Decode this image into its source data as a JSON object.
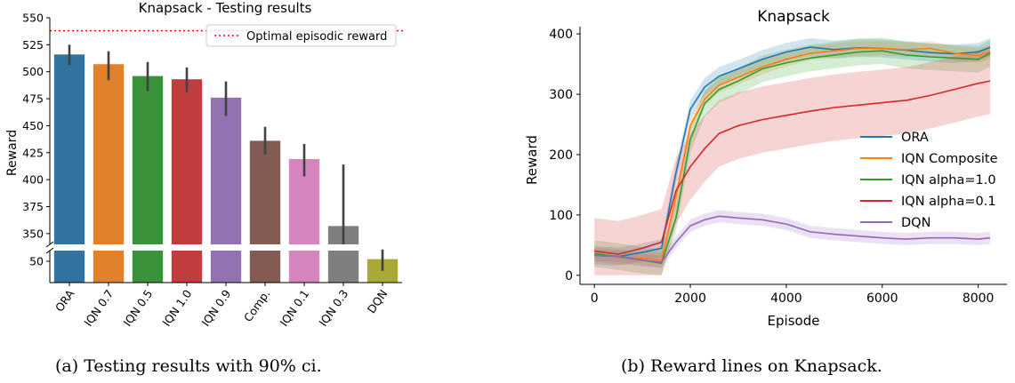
{
  "captions": {
    "a": "(a) Testing results with 90% ci.",
    "b": "(b) Reward lines on Knapsack."
  },
  "chart_data": [
    {
      "type": "bar",
      "title": "Knapsack - Testing results",
      "xlabel": "",
      "ylabel": "Reward",
      "categories": [
        "ORA",
        "IQN 0.7",
        "IQN 0.5",
        "IQN 1.0",
        "IQN 0.9",
        "Comp.",
        "IQN 0.1",
        "IQN 0.3",
        "DQN"
      ],
      "values": [
        516,
        507,
        496,
        493,
        476,
        436,
        419,
        357,
        52
      ],
      "ci": [
        [
          506,
          525
        ],
        [
          492,
          519
        ],
        [
          482,
          509
        ],
        [
          481,
          504
        ],
        [
          459,
          491
        ],
        [
          423,
          449
        ],
        [
          403,
          433
        ],
        [
          340,
          414
        ],
        [
          41,
          61
        ]
      ],
      "colors": [
        "#3274a1",
        "#e1812c",
        "#3a923a",
        "#c03d3e",
        "#9372b2",
        "#845b53",
        "#d684bd",
        "#7f7f7f",
        "#a9aa35"
      ],
      "broken_y_axis": true,
      "ylim_upper": [
        340,
        550
      ],
      "ylim_lower": [
        30,
        60
      ],
      "yticks_upper": [
        350,
        375,
        400,
        425,
        450,
        475,
        500,
        525,
        550
      ],
      "yticks_lower": [
        50
      ],
      "reference_line": {
        "label": "Optimal episodic reward",
        "value": 538,
        "color": "#ff0000",
        "style": "dotted"
      },
      "legend": "top-right",
      "grid": false
    },
    {
      "type": "line",
      "title": "Knapsack",
      "xlabel": "Episode",
      "ylabel": "Reward",
      "xlim": [
        -300,
        8600
      ],
      "ylim": [
        -15,
        412
      ],
      "xticks": [
        0,
        2000,
        4000,
        6000,
        8000
      ],
      "yticks": [
        0,
        100,
        200,
        300,
        400
      ],
      "legend": "right",
      "grid": false,
      "x": [
        0,
        500,
        1000,
        1400,
        1700,
        2000,
        2300,
        2600,
        3000,
        3500,
        4000,
        4500,
        5000,
        5500,
        6000,
        6500,
        7000,
        7500,
        8000,
        8250
      ],
      "series": [
        {
          "name": "ORA",
          "color": "#1f77b4",
          "values": [
            33,
            31,
            38,
            45,
            170,
            275,
            312,
            330,
            342,
            358,
            370,
            378,
            374,
            377,
            376,
            373,
            369,
            367,
            370,
            378
          ],
          "band": 15
        },
        {
          "name": "IQN Composite",
          "color": "#ff7f0e",
          "values": [
            35,
            30,
            28,
            25,
            130,
            248,
            292,
            315,
            328,
            345,
            358,
            368,
            372,
            376,
            376,
            374,
            376,
            368,
            364,
            370
          ],
          "band": 12
        },
        {
          "name": "IQN alpha=1.0",
          "color": "#2ca02c",
          "values": [
            36,
            31,
            25,
            20,
            95,
            225,
            285,
            308,
            322,
            342,
            352,
            360,
            365,
            370,
            372,
            365,
            362,
            360,
            358,
            368
          ],
          "band": 22
        },
        {
          "name": "IQN alpha=0.1",
          "color": "#d62728",
          "values": [
            40,
            35,
            45,
            55,
            140,
            180,
            210,
            235,
            248,
            258,
            265,
            272,
            278,
            282,
            286,
            290,
            298,
            308,
            318,
            322
          ],
          "band": 55
        },
        {
          "name": "DQN",
          "color": "#9467bd",
          "values": [
            33,
            32,
            25,
            22,
            55,
            82,
            92,
            98,
            95,
            92,
            85,
            72,
            68,
            65,
            62,
            60,
            62,
            62,
            60,
            62
          ],
          "band": 10
        }
      ]
    }
  ]
}
